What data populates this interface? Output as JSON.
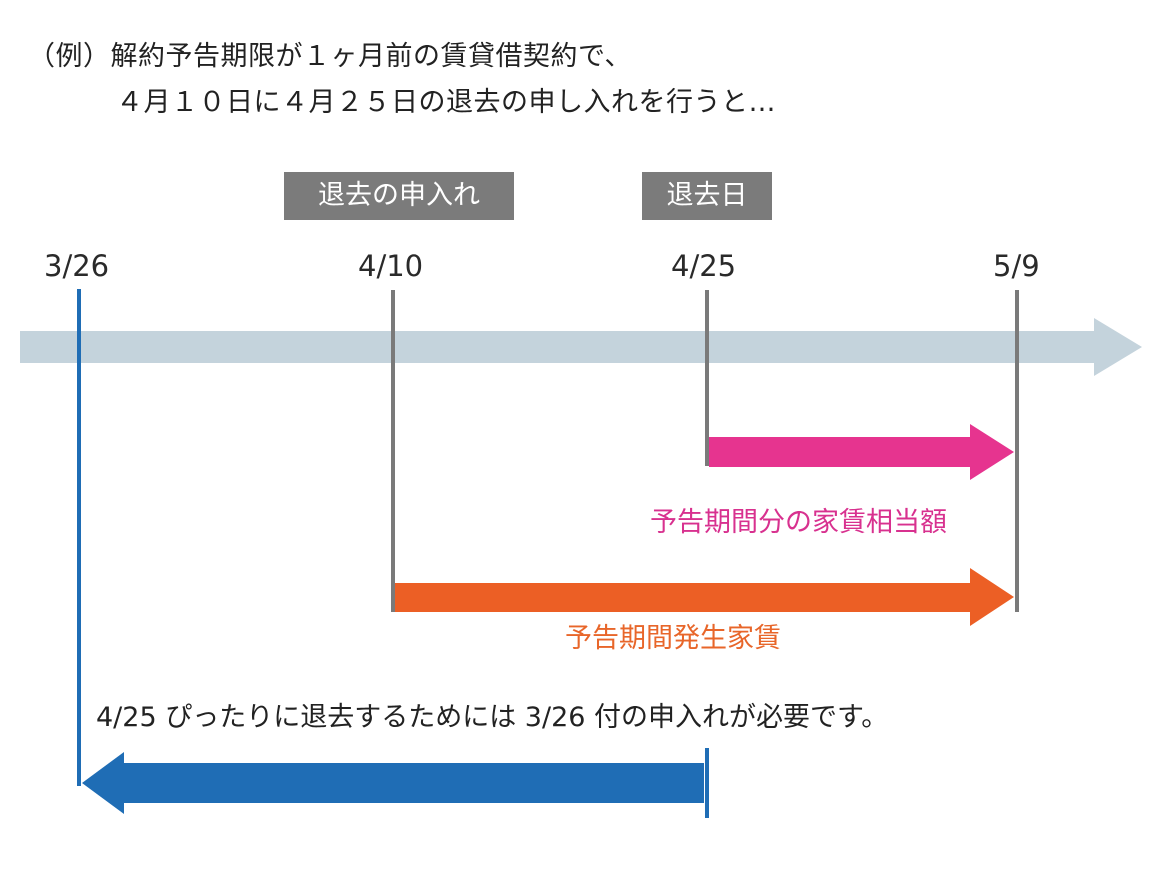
{
  "intro": {
    "line1": "（例）解約予告期限が１ヶ月前の賃貸借契約で、",
    "line2": "４月１０日に４月２５日の退去の申し入れを行うと…"
  },
  "tags": {
    "notice": "退去の申入れ",
    "moveout": "退去日"
  },
  "dates": [
    "3/26",
    "4/10",
    "4/25",
    "5/9"
  ],
  "captions": {
    "notice_period_rent": "予告期間分の家賃相当額",
    "notice_period_accrued": "予告期間発生家賃",
    "note": "4/25 ぴったりに退去するためには 3/26 付の申入れが必要です。"
  },
  "colors": {
    "timeline": "#c4d3dc",
    "pink": "#e6348f",
    "orange": "#ec5f25",
    "blue": "#1f6db5",
    "marker": "#7a7a7a",
    "tag_bg": "#7b7b7b"
  }
}
